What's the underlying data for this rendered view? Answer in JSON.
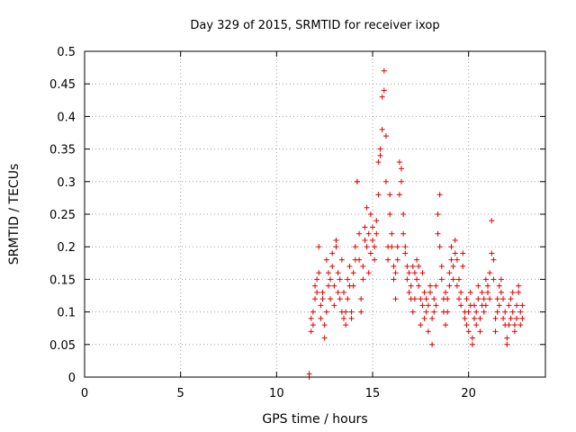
{
  "chart_data": {
    "type": "scatter",
    "title": "Day 329 of 2015, SRMTID for receiver ixop",
    "xlabel": "GPS time / hours",
    "ylabel": "SRMTID / TECUs",
    "xlim": [
      0,
      24
    ],
    "ylim": [
      0,
      0.5
    ],
    "x_ticks": [
      0,
      5,
      10,
      15,
      20
    ],
    "x_tick_labels": [
      "0",
      "5",
      "10",
      "15",
      "20"
    ],
    "y_ticks": [
      0,
      0.05,
      0.1,
      0.15,
      0.2,
      0.25,
      0.3,
      0.35,
      0.4,
      0.45,
      0.5
    ],
    "y_tick_labels": [
      "0",
      "0.05",
      "0.1",
      "0.15",
      "0.2",
      "0.25",
      "0.3",
      "0.35",
      "0.4",
      "0.45",
      "0.5"
    ],
    "grid": true,
    "marker": "+",
    "color": "#e00000",
    "series": [
      {
        "name": "SRMTID",
        "points": [
          [
            11.7,
            0.0
          ],
          [
            11.7,
            0.005
          ],
          [
            11.8,
            0.07
          ],
          [
            11.8,
            0.09
          ],
          [
            11.9,
            0.1
          ],
          [
            11.9,
            0.08
          ],
          [
            12.0,
            0.12
          ],
          [
            12.0,
            0.14
          ],
          [
            12.1,
            0.15
          ],
          [
            12.1,
            0.13
          ],
          [
            12.2,
            0.2
          ],
          [
            12.2,
            0.16
          ],
          [
            12.3,
            0.11
          ],
          [
            12.3,
            0.09
          ],
          [
            12.4,
            0.13
          ],
          [
            12.4,
            0.12
          ],
          [
            12.5,
            0.08
          ],
          [
            12.5,
            0.06
          ],
          [
            12.6,
            0.1
          ],
          [
            12.6,
            0.18
          ],
          [
            12.7,
            0.14
          ],
          [
            12.7,
            0.16
          ],
          [
            12.8,
            0.15
          ],
          [
            12.8,
            0.12
          ],
          [
            12.9,
            0.19
          ],
          [
            12.9,
            0.17
          ],
          [
            13.0,
            0.14
          ],
          [
            13.0,
            0.11
          ],
          [
            13.1,
            0.2
          ],
          [
            13.1,
            0.21
          ],
          [
            13.2,
            0.16
          ],
          [
            13.2,
            0.13
          ],
          [
            13.3,
            0.12
          ],
          [
            13.3,
            0.15
          ],
          [
            13.4,
            0.18
          ],
          [
            13.4,
            0.1
          ],
          [
            13.5,
            0.09
          ],
          [
            13.5,
            0.13
          ],
          [
            13.6,
            0.08
          ],
          [
            13.6,
            0.1
          ],
          [
            13.7,
            0.12
          ],
          [
            13.7,
            0.15
          ],
          [
            13.8,
            0.17
          ],
          [
            13.8,
            0.14
          ],
          [
            13.9,
            0.1
          ],
          [
            13.9,
            0.09
          ],
          [
            14.0,
            0.14
          ],
          [
            14.0,
            0.16
          ],
          [
            14.1,
            0.18
          ],
          [
            14.1,
            0.2
          ],
          [
            14.2,
            0.3
          ],
          [
            14.2,
            0.3
          ],
          [
            14.3,
            0.22
          ],
          [
            14.3,
            0.18
          ],
          [
            14.4,
            0.12
          ],
          [
            14.4,
            0.1
          ],
          [
            14.5,
            0.15
          ],
          [
            14.5,
            0.17
          ],
          [
            14.6,
            0.21
          ],
          [
            14.6,
            0.23
          ],
          [
            14.7,
            0.26
          ],
          [
            14.7,
            0.2
          ],
          [
            14.8,
            0.22
          ],
          [
            14.8,
            0.16
          ],
          [
            14.9,
            0.25
          ],
          [
            14.9,
            0.19
          ],
          [
            15.0,
            0.21
          ],
          [
            15.0,
            0.23
          ],
          [
            15.1,
            0.18
          ],
          [
            15.1,
            0.2
          ],
          [
            15.2,
            0.22
          ],
          [
            15.2,
            0.24
          ],
          [
            15.3,
            0.28
          ],
          [
            15.3,
            0.33
          ],
          [
            15.4,
            0.35
          ],
          [
            15.4,
            0.34
          ],
          [
            15.5,
            0.38
          ],
          [
            15.5,
            0.43
          ],
          [
            15.6,
            0.47
          ],
          [
            15.6,
            0.44
          ],
          [
            15.7,
            0.37
          ],
          [
            15.7,
            0.3
          ],
          [
            15.8,
            0.2
          ],
          [
            15.8,
            0.18
          ],
          [
            15.9,
            0.25
          ],
          [
            15.9,
            0.28
          ],
          [
            16.0,
            0.22
          ],
          [
            16.0,
            0.2
          ],
          [
            16.1,
            0.17
          ],
          [
            16.1,
            0.15
          ],
          [
            16.2,
            0.16
          ],
          [
            16.2,
            0.12
          ],
          [
            16.3,
            0.18
          ],
          [
            16.3,
            0.2
          ],
          [
            16.4,
            0.28
          ],
          [
            16.4,
            0.33
          ],
          [
            16.5,
            0.32
          ],
          [
            16.5,
            0.3
          ],
          [
            16.6,
            0.25
          ],
          [
            16.6,
            0.22
          ],
          [
            16.7,
            0.2
          ],
          [
            16.7,
            0.19
          ],
          [
            16.8,
            0.17
          ],
          [
            16.8,
            0.15
          ],
          [
            16.9,
            0.13
          ],
          [
            16.9,
            0.16
          ],
          [
            17.0,
            0.12
          ],
          [
            17.0,
            0.14
          ],
          [
            17.1,
            0.1
          ],
          [
            17.1,
            0.17
          ],
          [
            17.2,
            0.16
          ],
          [
            17.2,
            0.12
          ],
          [
            17.3,
            0.15
          ],
          [
            17.3,
            0.18
          ],
          [
            17.4,
            0.17
          ],
          [
            17.4,
            0.14
          ],
          [
            17.5,
            0.12
          ],
          [
            17.5,
            0.08
          ],
          [
            17.6,
            0.16
          ],
          [
            17.6,
            0.11
          ],
          [
            17.7,
            0.13
          ],
          [
            17.7,
            0.09
          ],
          [
            17.8,
            0.1
          ],
          [
            17.8,
            0.12
          ],
          [
            17.9,
            0.07
          ],
          [
            17.9,
            0.11
          ],
          [
            18.0,
            0.14
          ],
          [
            18.0,
            0.13
          ],
          [
            18.1,
            0.09
          ],
          [
            18.1,
            0.05
          ],
          [
            18.2,
            0.12
          ],
          [
            18.2,
            0.1
          ],
          [
            18.3,
            0.14
          ],
          [
            18.3,
            0.11
          ],
          [
            18.4,
            0.25
          ],
          [
            18.4,
            0.22
          ],
          [
            18.5,
            0.28
          ],
          [
            18.5,
            0.2
          ],
          [
            18.6,
            0.17
          ],
          [
            18.6,
            0.15
          ],
          [
            18.7,
            0.12
          ],
          [
            18.7,
            0.1
          ],
          [
            18.8,
            0.08
          ],
          [
            18.8,
            0.13
          ],
          [
            18.9,
            0.12
          ],
          [
            18.9,
            0.1
          ],
          [
            19.0,
            0.14
          ],
          [
            19.0,
            0.16
          ],
          [
            19.1,
            0.18
          ],
          [
            19.1,
            0.2
          ],
          [
            19.2,
            0.17
          ],
          [
            19.2,
            0.15
          ],
          [
            19.3,
            0.19
          ],
          [
            19.3,
            0.21
          ],
          [
            19.4,
            0.18
          ],
          [
            19.4,
            0.14
          ],
          [
            19.5,
            0.12
          ],
          [
            19.5,
            0.15
          ],
          [
            19.6,
            0.13
          ],
          [
            19.6,
            0.11
          ],
          [
            19.7,
            0.19
          ],
          [
            19.7,
            0.17
          ],
          [
            19.8,
            0.09
          ],
          [
            19.8,
            0.1
          ],
          [
            19.9,
            0.08
          ],
          [
            19.9,
            0.12
          ],
          [
            20.0,
            0.07
          ],
          [
            20.0,
            0.1
          ],
          [
            20.1,
            0.13
          ],
          [
            20.1,
            0.11
          ],
          [
            20.2,
            0.06
          ],
          [
            20.2,
            0.05
          ],
          [
            20.3,
            0.09
          ],
          [
            20.3,
            0.11
          ],
          [
            20.4,
            0.08
          ],
          [
            20.4,
            0.1
          ],
          [
            20.5,
            0.12
          ],
          [
            20.5,
            0.14
          ],
          [
            20.6,
            0.09
          ],
          [
            20.6,
            0.07
          ],
          [
            20.7,
            0.11
          ],
          [
            20.7,
            0.13
          ],
          [
            20.8,
            0.1
          ],
          [
            20.8,
            0.12
          ],
          [
            20.9,
            0.15
          ],
          [
            20.9,
            0.11
          ],
          [
            21.0,
            0.14
          ],
          [
            21.0,
            0.13
          ],
          [
            21.1,
            0.16
          ],
          [
            21.1,
            0.12
          ],
          [
            21.2,
            0.24
          ],
          [
            21.2,
            0.19
          ],
          [
            21.3,
            0.18
          ],
          [
            21.3,
            0.15
          ],
          [
            21.4,
            0.09
          ],
          [
            21.4,
            0.07
          ],
          [
            21.5,
            0.1
          ],
          [
            21.5,
            0.12
          ],
          [
            21.6,
            0.14
          ],
          [
            21.6,
            0.11
          ],
          [
            21.7,
            0.13
          ],
          [
            21.7,
            0.15
          ],
          [
            21.8,
            0.12
          ],
          [
            21.8,
            0.09
          ],
          [
            21.9,
            0.08
          ],
          [
            21.9,
            0.1
          ],
          [
            22.0,
            0.06
          ],
          [
            22.0,
            0.05
          ],
          [
            22.1,
            0.08
          ],
          [
            22.1,
            0.11
          ],
          [
            22.2,
            0.12
          ],
          [
            22.2,
            0.09
          ],
          [
            22.3,
            0.13
          ],
          [
            22.3,
            0.1
          ],
          [
            22.4,
            0.08
          ],
          [
            22.4,
            0.07
          ],
          [
            22.5,
            0.11
          ],
          [
            22.5,
            0.09
          ],
          [
            22.6,
            0.14
          ],
          [
            22.6,
            0.13
          ],
          [
            22.7,
            0.1
          ],
          [
            22.7,
            0.08
          ],
          [
            22.8,
            0.09
          ],
          [
            22.8,
            0.11
          ]
        ]
      }
    ]
  }
}
